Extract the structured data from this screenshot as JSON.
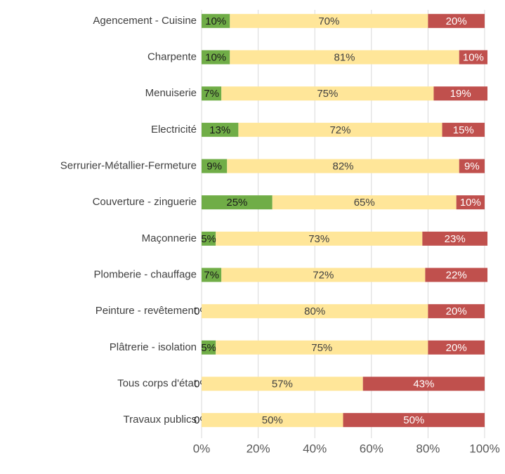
{
  "chart_data": {
    "type": "stacked-barh",
    "categories": [
      "Agencement - Cuisine",
      "Charpente",
      "Menuiserie",
      "Electricité",
      "Serrurier-Métallier-Fermeture",
      "Couverture - zinguerie",
      "Maçonnerie",
      "Plomberie - chauffage",
      "Peinture - revêtement",
      "Plâtrerie - isolation",
      "Tous corps d'état",
      "Travaux publics"
    ],
    "series": [
      {
        "color": "#70ad47",
        "label_color": "#1a1a1a",
        "values": [
          10,
          10,
          7,
          13,
          9,
          25,
          5,
          7,
          0,
          5,
          0,
          0
        ],
        "value_labels": [
          "10%",
          "10%",
          "7%",
          "13%",
          "9%",
          "25%",
          "5%",
          "7%",
          "0%",
          "5%",
          "0%",
          "0%"
        ]
      },
      {
        "color": "#ffe699",
        "label_color": "#404040",
        "values": [
          70,
          81,
          75,
          72,
          82,
          65,
          73,
          72,
          80,
          75,
          57,
          50
        ],
        "value_labels": [
          "70%",
          "81%",
          "75%",
          "72%",
          "82%",
          "65%",
          "73%",
          "72%",
          "80%",
          "75%",
          "57%",
          "50%"
        ]
      },
      {
        "color": "#c0504d",
        "label_color": "#ffffff",
        "values": [
          20,
          10,
          19,
          15,
          9,
          10,
          23,
          22,
          20,
          20,
          43,
          50
        ],
        "value_labels": [
          "20%",
          "10%",
          "19%",
          "15%",
          "9%",
          "10%",
          "23%",
          "22%",
          "20%",
          "20%",
          "43%",
          "50%"
        ]
      }
    ],
    "xlim": [
      0,
      100
    ],
    "xticks": [
      {
        "value": 0,
        "label": "0%"
      },
      {
        "value": 20,
        "label": "20%"
      },
      {
        "value": 40,
        "label": "40%"
      },
      {
        "value": 60,
        "label": "60%"
      },
      {
        "value": 80,
        "label": "80%"
      },
      {
        "value": 100,
        "label": "100%"
      }
    ],
    "grid": true
  }
}
